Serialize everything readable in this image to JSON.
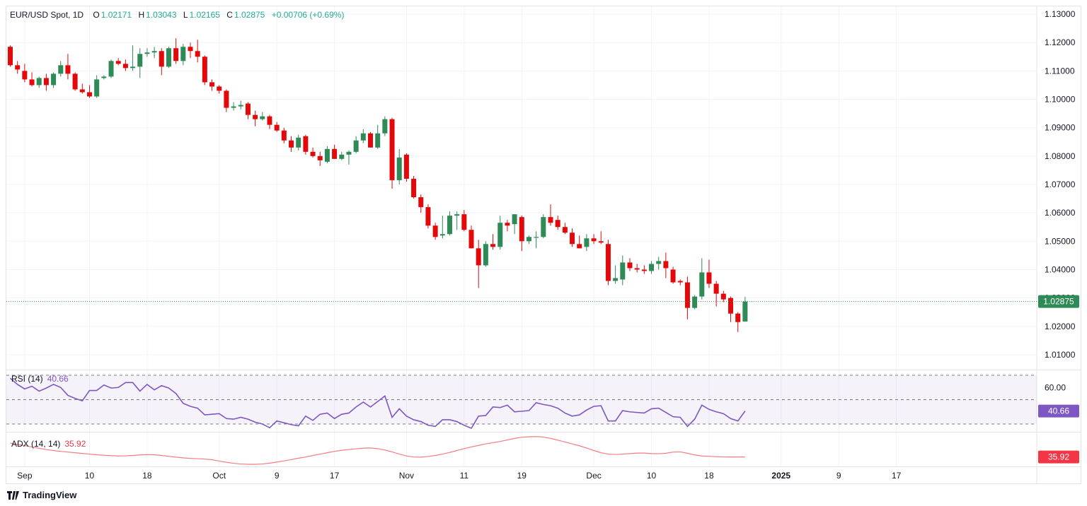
{
  "header": {
    "symbol": "EUR/USD Spot, 1D",
    "o_label": "O",
    "o_value": "1.02171",
    "h_label": "H",
    "h_value": "1.03043",
    "l_label": "L",
    "l_value": "1.02165",
    "c_label": "C",
    "c_value": "1.02875",
    "change": "+0.00706 (+0.69%)"
  },
  "rsi_label": {
    "name": "RSI (14)",
    "value": "40.66"
  },
  "adx_label": {
    "name": "ADX (14, 14)",
    "value": "35.92"
  },
  "brand": "TradingView",
  "colors": {
    "up": "#2e8b57",
    "down": "#e3080a",
    "rsi": "#7e57c2",
    "adx": "#f77c80",
    "last": "#2e8b57"
  },
  "chart_data": {
    "type": "candlestick",
    "title": "EUR/USD Spot, 1D",
    "price_axis": {
      "range": [
        1.006,
        1.1325
      ],
      "ticks": [
        "1.01000",
        "1.02000",
        "1.03000",
        "1.04000",
        "1.05000",
        "1.06000",
        "1.07000",
        "1.08000",
        "1.09000",
        "1.10000",
        "1.11000",
        "1.12000",
        "1.13000"
      ],
      "last_price": "1.02875"
    },
    "x_axis": {
      "labels": [
        "Sep",
        "10",
        "18",
        "Oct",
        "9",
        "17",
        "Nov",
        "11",
        "19",
        "Dec",
        "10",
        "18",
        "2025",
        "9",
        "17"
      ],
      "label_bar_index": [
        2,
        11,
        19,
        29,
        37,
        45,
        55,
        63,
        71,
        81,
        89,
        97,
        107,
        115,
        123
      ]
    },
    "candles": [
      [
        1.1185,
        1.119,
        1.1115,
        1.112
      ],
      [
        1.112,
        1.1135,
        1.109,
        1.1105
      ],
      [
        1.11,
        1.1125,
        1.106,
        1.107
      ],
      [
        1.107,
        1.1095,
        1.1045,
        1.105
      ],
      [
        1.105,
        1.108,
        1.104,
        1.1075
      ],
      [
        1.1075,
        1.109,
        1.103,
        1.105
      ],
      [
        1.105,
        1.1095,
        1.104,
        1.109
      ],
      [
        1.109,
        1.1135,
        1.108,
        1.112
      ],
      [
        1.112,
        1.116,
        1.107,
        1.109
      ],
      [
        1.109,
        1.1095,
        1.103,
        1.1035
      ],
      [
        1.1035,
        1.1055,
        1.102,
        1.1025
      ],
      [
        1.1025,
        1.105,
        1.1005,
        1.101
      ],
      [
        1.101,
        1.1085,
        1.1005,
        1.107
      ],
      [
        1.1075,
        1.1085,
        1.107,
        1.108
      ],
      [
        1.108,
        1.114,
        1.1075,
        1.1135
      ],
      [
        1.1135,
        1.1145,
        1.112,
        1.1125
      ],
      [
        1.1125,
        1.114,
        1.11,
        1.111
      ],
      [
        1.111,
        1.119,
        1.11,
        1.1115
      ],
      [
        1.1115,
        1.118,
        1.1075,
        1.116
      ],
      [
        1.116,
        1.118,
        1.115,
        1.1165
      ],
      [
        1.1165,
        1.1185,
        1.1145,
        1.117
      ],
      [
        1.117,
        1.118,
        1.1085,
        1.1115
      ],
      [
        1.1115,
        1.1185,
        1.111,
        1.118
      ],
      [
        1.118,
        1.1215,
        1.1125,
        1.1135
      ],
      [
        1.1135,
        1.1195,
        1.112,
        1.1185
      ],
      [
        1.1185,
        1.12,
        1.1145,
        1.117
      ],
      [
        1.117,
        1.121,
        1.113,
        1.115
      ],
      [
        1.115,
        1.1155,
        1.105,
        1.106
      ],
      [
        1.106,
        1.107,
        1.103,
        1.1045
      ],
      [
        1.1045,
        1.105,
        1.102,
        1.103
      ],
      [
        1.103,
        1.1035,
        1.0955,
        1.097
      ],
      [
        1.097,
        1.099,
        1.096,
        1.0975
      ],
      [
        1.0975,
        1.0995,
        1.0965,
        1.098
      ],
      [
        1.0985,
        1.099,
        1.093,
        1.0945
      ],
      [
        1.0945,
        1.096,
        1.0905,
        1.093
      ],
      [
        1.093,
        1.0955,
        1.0925,
        1.094
      ],
      [
        1.094,
        1.0945,
        1.0895,
        1.091
      ],
      [
        1.091,
        1.092,
        1.0885,
        1.089
      ],
      [
        1.089,
        1.09,
        1.0845,
        1.0855
      ],
      [
        1.0855,
        1.087,
        1.0815,
        1.083
      ],
      [
        1.083,
        1.0875,
        1.082,
        1.0865
      ],
      [
        1.087,
        1.0875,
        1.0805,
        1.0815
      ],
      [
        1.0815,
        1.083,
        1.0795,
        1.08
      ],
      [
        1.08,
        1.0815,
        1.0765,
        1.0785
      ],
      [
        1.078,
        1.0835,
        1.0775,
        1.0825
      ],
      [
        1.0825,
        1.084,
        1.079,
        1.079
      ],
      [
        1.079,
        1.0815,
        1.0785,
        1.0805
      ],
      [
        1.0805,
        1.082,
        1.077,
        1.0815
      ],
      [
        1.0815,
        1.087,
        1.081,
        1.0855
      ],
      [
        1.0855,
        1.0895,
        1.0845,
        1.088
      ],
      [
        1.088,
        1.0885,
        1.083,
        1.083
      ],
      [
        1.083,
        1.091,
        1.0825,
        1.088
      ],
      [
        1.088,
        1.094,
        1.087,
        1.093
      ],
      [
        1.093,
        1.0935,
        1.0685,
        1.0715
      ],
      [
        1.0715,
        1.0825,
        1.07,
        1.0795
      ],
      [
        1.0805,
        1.081,
        1.071,
        1.072
      ],
      [
        1.072,
        1.073,
        1.065,
        1.0655
      ],
      [
        1.0655,
        1.0665,
        1.06,
        1.062
      ],
      [
        1.062,
        1.063,
        1.0545,
        1.0555
      ],
      [
        1.0555,
        1.0565,
        1.0505,
        1.0515
      ],
      [
        1.052,
        1.059,
        1.051,
        1.0525
      ],
      [
        1.0525,
        1.0605,
        1.052,
        1.059
      ],
      [
        1.059,
        1.0605,
        1.054,
        1.0595
      ],
      [
        1.0595,
        1.061,
        1.0535,
        1.054
      ],
      [
        1.054,
        1.0555,
        1.0475,
        1.0475
      ],
      [
        1.0475,
        1.0505,
        1.0335,
        1.0415
      ],
      [
        1.0415,
        1.05,
        1.041,
        1.049
      ],
      [
        1.049,
        1.0525,
        1.047,
        1.048
      ],
      [
        1.048,
        1.059,
        1.047,
        1.0565
      ],
      [
        1.0565,
        1.0575,
        1.0535,
        1.0555
      ],
      [
        1.056,
        1.0595,
        1.0525,
        1.0595
      ],
      [
        1.0585,
        1.059,
        1.0465,
        1.05
      ],
      [
        1.05,
        1.052,
        1.049,
        1.0515
      ],
      [
        1.0515,
        1.0535,
        1.0475,
        1.0515
      ],
      [
        1.0515,
        1.0595,
        1.051,
        1.0585
      ],
      [
        1.0585,
        1.063,
        1.0555,
        1.0565
      ],
      [
        1.0575,
        1.059,
        1.054,
        1.055
      ],
      [
        1.055,
        1.0565,
        1.0525,
        1.053
      ],
      [
        1.053,
        1.0545,
        1.048,
        1.049
      ],
      [
        1.049,
        1.052,
        1.0475,
        1.0475
      ],
      [
        1.048,
        1.0525,
        1.0465,
        1.051
      ],
      [
        1.051,
        1.0525,
        1.049,
        1.05
      ],
      [
        1.05,
        1.0535,
        1.049,
        1.0495
      ],
      [
        1.049,
        1.0505,
        1.0345,
        1.036
      ],
      [
        1.036,
        1.0415,
        1.035,
        1.037
      ],
      [
        1.0365,
        1.045,
        1.0345,
        1.0425
      ],
      [
        1.0425,
        1.044,
        1.0395,
        1.0405
      ],
      [
        1.0405,
        1.042,
        1.039,
        1.04
      ],
      [
        1.04,
        1.0415,
        1.0385,
        1.0395
      ],
      [
        1.0395,
        1.043,
        1.0385,
        1.042
      ],
      [
        1.042,
        1.0445,
        1.04,
        1.043
      ],
      [
        1.043,
        1.046,
        1.037,
        1.0405
      ],
      [
        1.04,
        1.041,
        1.035,
        1.0355
      ],
      [
        1.036,
        1.0365,
        1.0345,
        1.0355
      ],
      [
        1.0355,
        1.0375,
        1.0225,
        1.0265
      ],
      [
        1.0265,
        1.031,
        1.026,
        1.0305
      ],
      [
        1.0305,
        1.044,
        1.0295,
        1.039
      ],
      [
        1.039,
        1.0435,
        1.0335,
        1.035
      ],
      [
        1.035,
        1.036,
        1.027,
        1.0315
      ],
      [
        1.0315,
        1.0325,
        1.0285,
        1.0295
      ],
      [
        1.03,
        1.0305,
        1.0215,
        1.0245
      ],
      [
        1.0245,
        1.025,
        1.018,
        1.0215
      ],
      [
        1.02171,
        1.03043,
        1.02165,
        1.02875
      ]
    ],
    "rsi": {
      "name": "RSI (14)",
      "range": [
        20,
        70
      ],
      "bands": [
        30,
        70,
        50
      ],
      "axis_ticks": [
        "60.00"
      ],
      "last": 40.66,
      "values": [
        67.5,
        62.5,
        58.8,
        61.0,
        57.0,
        59.5,
        62.5,
        60.0,
        53.5,
        51.0,
        49.0,
        57.5,
        57.5,
        62.0,
        59.5,
        60.0,
        64.0,
        64.0,
        57.0,
        62.5,
        58.0,
        61.5,
        59.5,
        55.0,
        47.0,
        44.5,
        43.0,
        37.5,
        38.0,
        38.5,
        34.5,
        34.0,
        35.5,
        34.0,
        31.5,
        30.0,
        27.0,
        32.5,
        31.0,
        29.5,
        28.5,
        36.5,
        33.0,
        38.0,
        39.0,
        34.5,
        38.0,
        39.0,
        44.0,
        48.0,
        44.0,
        48.5,
        53.0,
        35.5,
        42.5,
        36.5,
        33.5,
        32.0,
        29.0,
        28.0,
        33.5,
        33.5,
        32.0,
        29.0,
        26.5,
        36.5,
        37.0,
        44.0,
        43.5,
        45.5,
        40.0,
        40.5,
        41.0,
        47.5,
        46.0,
        45.0,
        43.0,
        39.0,
        36.5,
        37.5,
        41.5,
        44.5,
        45.0,
        32.5,
        32.5,
        41.0,
        40.0,
        39.5,
        39.0,
        42.5,
        43.0,
        39.5,
        36.0,
        35.5,
        28.0,
        34.0,
        45.5,
        42.0,
        40.0,
        38.5,
        34.5,
        32.5,
        40.66
      ]
    },
    "adx": {
      "name": "ADX (14, 14)",
      "last": 35.92,
      "values": [
        44.0,
        43.3,
        42.6,
        41.8,
        41.0,
        40.3,
        39.7,
        39.2,
        38.8,
        38.4,
        38.0,
        37.6,
        37.2,
        36.9,
        36.7,
        36.5,
        36.6,
        36.8,
        37.1,
        37.3,
        37.2,
        36.8,
        36.3,
        35.8,
        35.4,
        35.1,
        34.9,
        34.7,
        34.3,
        33.5,
        32.8,
        32.2,
        31.8,
        31.6,
        31.6,
        31.8,
        32.3,
        32.9,
        33.6,
        34.4,
        35.2,
        35.9,
        36.8,
        37.6,
        38.4,
        39.2,
        39.8,
        40.3,
        40.7,
        41.1,
        41.2,
        40.8,
        40.0,
        38.9,
        37.6,
        36.5,
        35.9,
        35.8,
        36.2,
        36.8,
        37.6,
        38.6,
        39.7,
        40.8,
        41.8,
        42.7,
        43.6,
        44.3,
        45.0,
        45.9,
        46.8,
        47.5,
        47.8,
        47.9,
        47.6,
        46.8,
        45.8,
        44.7,
        43.6,
        42.5,
        41.2,
        39.7,
        38.4,
        37.6,
        37.4,
        37.6,
        37.9,
        38.2,
        38.2,
        37.9,
        37.8,
        38.1,
        38.8,
        38.9,
        38.1,
        37.1,
        36.5,
        36.3,
        36.1,
        35.95,
        35.92,
        35.92,
        35.92
      ]
    }
  }
}
